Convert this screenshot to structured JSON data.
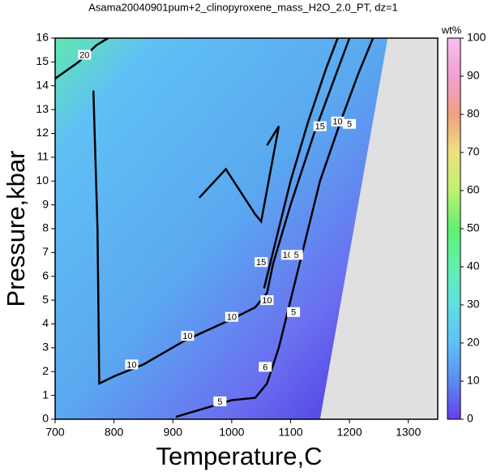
{
  "chart_data": {
    "type": "contour",
    "title": "Asama20040901pum+2_clinopyroxene_mass_H2O_2.0_PT, dz=1",
    "x_label": "Temperature,C",
    "y_label": "Pressure,kbar",
    "xlim": [
      700,
      1350
    ],
    "ylim": [
      0,
      16
    ],
    "xticks": [
      700,
      800,
      900,
      1000,
      1100,
      1200,
      1300
    ],
    "yticks": [
      0,
      1,
      2,
      3,
      4,
      5,
      6,
      7,
      8,
      9,
      10,
      11,
      12,
      13,
      14,
      15,
      16
    ],
    "colorbar": {
      "label": "wt%",
      "lim": [
        0,
        100
      ],
      "ticks": [
        0,
        10,
        20,
        30,
        40,
        50,
        60,
        70,
        80,
        90,
        100
      ]
    },
    "field": {
      "x": [
        700,
        1150,
        1265,
        700
      ],
      "y": [
        0,
        0,
        16,
        16
      ]
    },
    "contours": [
      {
        "level": 5,
        "x": [
          905,
          960,
          1000,
          1040,
          1060,
          1080,
          1110,
          1150,
          1185,
          1215,
          1240
        ],
        "y": [
          0.1,
          0.5,
          0.8,
          0.9,
          1.5,
          3,
          6,
          10,
          12.5,
          14.5,
          16
        ]
      },
      {
        "level": 10,
        "x": [
          765,
          772,
          775,
          800,
          850,
          920,
          1000,
          1040,
          1060,
          1070,
          1100,
          1140,
          1170,
          1200
        ],
        "y": [
          13.8,
          8,
          1.5,
          1.8,
          2.3,
          3.3,
          4.2,
          4.7,
          5.3,
          6.5,
          9,
          12,
          14,
          16
        ]
      },
      {
        "level": 15,
        "x": [
          1055,
          1070,
          1100,
          1130,
          1160,
          1180
        ],
        "y": [
          5.5,
          7,
          10,
          12.5,
          14.7,
          16
        ]
      },
      {
        "level": 15,
        "x": [
          945,
          990,
          1040,
          1050,
          1080,
          1060
        ],
        "y": [
          9.3,
          10.5,
          8.6,
          8.3,
          12.3,
          11.5
        ]
      },
      {
        "level": 20,
        "x": [
          700,
          740,
          770,
          790
        ],
        "y": [
          14.3,
          15,
          15.7,
          16
        ]
      }
    ],
    "contour_labels": [
      {
        "value": 20,
        "x": 750,
        "y": 15.3
      },
      {
        "value": 15,
        "x": 1150,
        "y": 12.3
      },
      {
        "value": 10,
        "x": 1180,
        "y": 12.5
      },
      {
        "value": 5,
        "x": 1200,
        "y": 12.4
      },
      {
        "value": 15,
        "x": 1050,
        "y": 6.6
      },
      {
        "value": 10,
        "x": 1060,
        "y": 5.0
      },
      {
        "value": 10,
        "x": 1095,
        "y": 6.9
      },
      {
        "value": 5,
        "x": 1110,
        "y": 6.9
      },
      {
        "value": 5,
        "x": 1105,
        "y": 4.5
      },
      {
        "value": 10,
        "x": 1000,
        "y": 4.3
      },
      {
        "value": 10,
        "x": 925,
        "y": 3.5
      },
      {
        "value": 10,
        "x": 830,
        "y": 2.3
      },
      {
        "value": 6,
        "x": 1057,
        "y": 2.2
      },
      {
        "value": 5,
        "x": 980,
        "y": 0.75
      }
    ]
  }
}
